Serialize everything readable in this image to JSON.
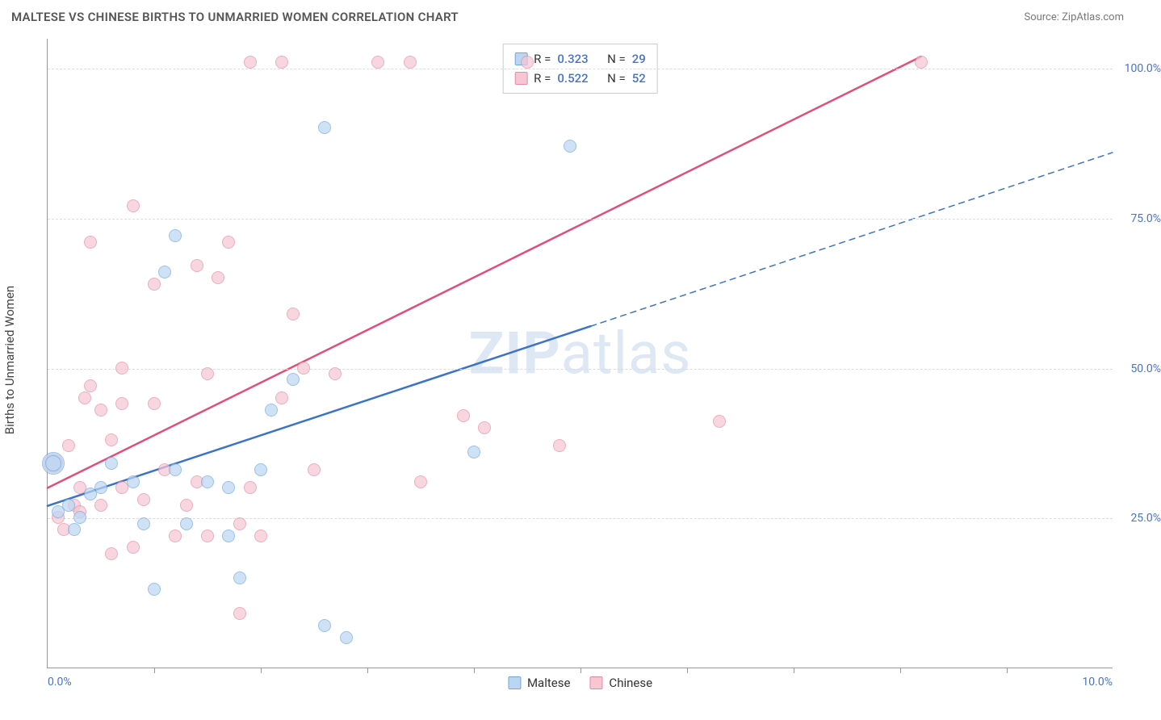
{
  "header": {
    "title": "MALTESE VS CHINESE BIRTHS TO UNMARRIED WOMEN CORRELATION CHART",
    "source": "Source: ZipAtlas.com"
  },
  "axis": {
    "y_label": "Births to Unmarried Women",
    "x_min_label": "0.0%",
    "x_max_label": "10.0%",
    "y_ticks": [
      {
        "value": 25,
        "label": "25.0%"
      },
      {
        "value": 50,
        "label": "50.0%"
      },
      {
        "value": 75,
        "label": "75.0%"
      },
      {
        "value": 100,
        "label": "100.0%"
      }
    ],
    "x_tick_positions": [
      1,
      2,
      3,
      4,
      5,
      6,
      7,
      8,
      9
    ],
    "xlim": [
      0,
      10
    ],
    "ylim": [
      0,
      105
    ],
    "x_tick_color": "#999999",
    "grid_color": "#dcdcdc",
    "label_color": "#4b73c4"
  },
  "series": {
    "maltese": {
      "label": "Maltese",
      "fill": "#bcd6f2",
      "stroke": "#6ea8e0",
      "line_color": "#3b73c9",
      "marker_size": 16,
      "r_value": "0.323",
      "n_value": "29",
      "trend": {
        "x1": 0,
        "y1": 27,
        "x2_solid": 5.1,
        "y2_solid": 57,
        "x2": 10,
        "y2": 86,
        "solid_width": 2.5,
        "dash_pattern": "7 6"
      },
      "points": [
        {
          "x": 0.05,
          "y": 34,
          "r": 14
        },
        {
          "x": 0.05,
          "y": 34,
          "r": 10
        },
        {
          "x": 0.1,
          "y": 26
        },
        {
          "x": 0.2,
          "y": 27
        },
        {
          "x": 0.3,
          "y": 25
        },
        {
          "x": 0.25,
          "y": 23
        },
        {
          "x": 0.5,
          "y": 30
        },
        {
          "x": 0.4,
          "y": 29
        },
        {
          "x": 0.6,
          "y": 34
        },
        {
          "x": 0.8,
          "y": 31
        },
        {
          "x": 0.9,
          "y": 24
        },
        {
          "x": 1.0,
          "y": 13
        },
        {
          "x": 1.2,
          "y": 33
        },
        {
          "x": 1.3,
          "y": 24
        },
        {
          "x": 1.1,
          "y": 66
        },
        {
          "x": 1.2,
          "y": 72
        },
        {
          "x": 1.5,
          "y": 31
        },
        {
          "x": 1.7,
          "y": 30
        },
        {
          "x": 1.8,
          "y": 15
        },
        {
          "x": 1.7,
          "y": 22
        },
        {
          "x": 2.0,
          "y": 33
        },
        {
          "x": 2.1,
          "y": 43
        },
        {
          "x": 2.3,
          "y": 48
        },
        {
          "x": 2.6,
          "y": 7
        },
        {
          "x": 2.6,
          "y": 90
        },
        {
          "x": 2.8,
          "y": 5
        },
        {
          "x": 4.0,
          "y": 36
        },
        {
          "x": 4.9,
          "y": 87
        }
      ]
    },
    "chinese": {
      "label": "Chinese",
      "fill": "#f6c6d2",
      "stroke": "#e88aa3",
      "line_color": "#e24e7a",
      "marker_size": 16,
      "r_value": "0.522",
      "n_value": "52",
      "trend": {
        "x1": 0,
        "y1": 30,
        "x2": 8.2,
        "y2": 102,
        "width": 2.5
      },
      "points": [
        {
          "x": 0.05,
          "y": 34,
          "r": 12
        },
        {
          "x": 0.1,
          "y": 25
        },
        {
          "x": 0.15,
          "y": 23
        },
        {
          "x": 0.2,
          "y": 37
        },
        {
          "x": 0.25,
          "y": 27
        },
        {
          "x": 0.3,
          "y": 26
        },
        {
          "x": 0.3,
          "y": 30
        },
        {
          "x": 0.35,
          "y": 45
        },
        {
          "x": 0.4,
          "y": 47
        },
        {
          "x": 0.4,
          "y": 71
        },
        {
          "x": 0.5,
          "y": 27
        },
        {
          "x": 0.5,
          "y": 43
        },
        {
          "x": 0.6,
          "y": 38
        },
        {
          "x": 0.6,
          "y": 19
        },
        {
          "x": 0.7,
          "y": 30
        },
        {
          "x": 0.7,
          "y": 44
        },
        {
          "x": 0.7,
          "y": 50
        },
        {
          "x": 0.8,
          "y": 20
        },
        {
          "x": 0.8,
          "y": 77
        },
        {
          "x": 0.9,
          "y": 28
        },
        {
          "x": 1.0,
          "y": 44
        },
        {
          "x": 1.0,
          "y": 64
        },
        {
          "x": 1.1,
          "y": 33
        },
        {
          "x": 1.2,
          "y": 22
        },
        {
          "x": 1.3,
          "y": 27
        },
        {
          "x": 1.4,
          "y": 31
        },
        {
          "x": 1.4,
          "y": 67
        },
        {
          "x": 1.5,
          "y": 49
        },
        {
          "x": 1.5,
          "y": 22
        },
        {
          "x": 1.6,
          "y": 65
        },
        {
          "x": 1.7,
          "y": 71
        },
        {
          "x": 1.8,
          "y": 24
        },
        {
          "x": 1.8,
          "y": 9
        },
        {
          "x": 1.9,
          "y": 30
        },
        {
          "x": 1.9,
          "y": 101
        },
        {
          "x": 2.0,
          "y": 22
        },
        {
          "x": 2.2,
          "y": 45
        },
        {
          "x": 2.2,
          "y": 101
        },
        {
          "x": 2.3,
          "y": 59
        },
        {
          "x": 2.4,
          "y": 50
        },
        {
          "x": 2.5,
          "y": 33
        },
        {
          "x": 2.7,
          "y": 49
        },
        {
          "x": 3.1,
          "y": 101
        },
        {
          "x": 3.4,
          "y": 101
        },
        {
          "x": 3.5,
          "y": 31
        },
        {
          "x": 3.9,
          "y": 42
        },
        {
          "x": 4.1,
          "y": 40
        },
        {
          "x": 4.5,
          "y": 101
        },
        {
          "x": 4.8,
          "y": 37
        },
        {
          "x": 6.3,
          "y": 41
        },
        {
          "x": 8.2,
          "y": 101
        }
      ]
    }
  },
  "legend": {
    "stats_r_label": "R =",
    "stats_n_label": "N ="
  },
  "watermark": {
    "part1": "ZIP",
    "part2": "atlas"
  },
  "colors": {
    "title": "#555555",
    "source": "#777777",
    "axis_text": "#444444",
    "value_text": "#4b73c4",
    "background": "#ffffff"
  }
}
